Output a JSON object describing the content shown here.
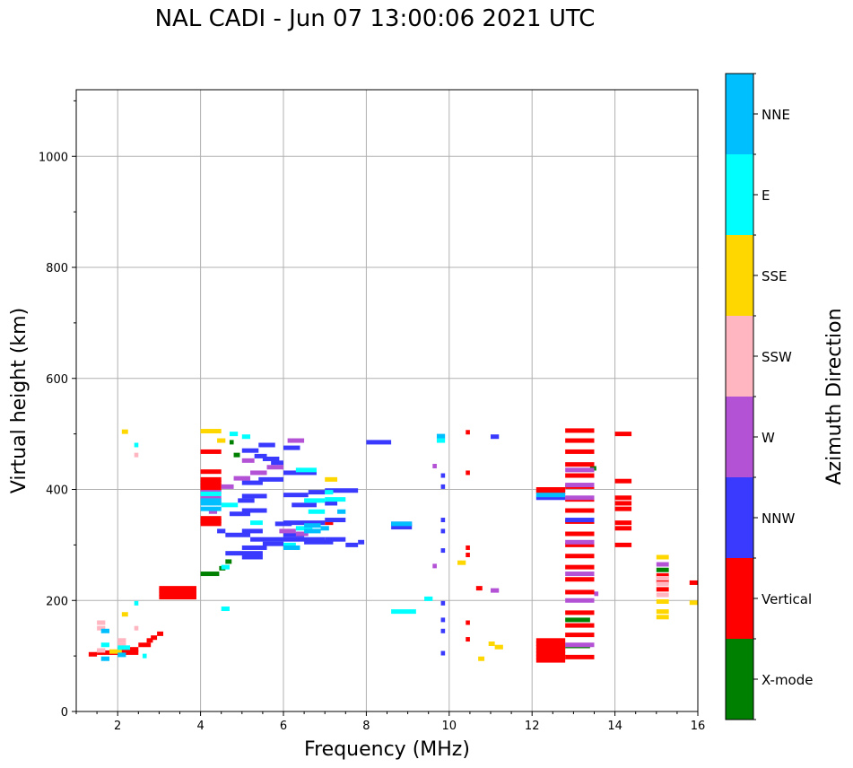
{
  "chart_data": {
    "type": "scatter",
    "title": "NAL CADI - Jun 07 13:00:06 2021 UTC",
    "xlabel": "Frequency (MHz)",
    "ylabel": "Virtual height (km)",
    "xlim": [
      1,
      16
    ],
    "ylim": [
      0,
      1120
    ],
    "xticks": [
      2,
      4,
      6,
      8,
      10,
      12,
      14,
      16
    ],
    "yticks": [
      0,
      200,
      400,
      600,
      800,
      1000
    ],
    "grid": true,
    "colorbar": {
      "label": "Azimuth Direction",
      "categories": [
        {
          "name": "X-mode",
          "color": "#008000"
        },
        {
          "name": "Vertical",
          "color": "#ff0000"
        },
        {
          "name": "NNW",
          "color": "#3a3aff"
        },
        {
          "name": "W",
          "color": "#b452d6"
        },
        {
          "name": "SSW",
          "color": "#ffb6c1"
        },
        {
          "name": "SSE",
          "color": "#ffd700"
        },
        {
          "name": "E",
          "color": "#00ffff"
        },
        {
          "name": "NNE",
          "color": "#00bfff"
        }
      ]
    },
    "series": [
      {
        "name": "X-mode",
        "segments": [
          [
            4.0,
            4.45,
            248
          ],
          [
            4.45,
            4.6,
            258
          ],
          [
            4.6,
            4.75,
            270
          ],
          [
            12.8,
            13.4,
            118
          ],
          [
            12.8,
            13.4,
            165
          ],
          [
            13.4,
            13.55,
            438
          ],
          [
            4.7,
            4.8,
            485
          ],
          [
            4.8,
            4.95,
            462
          ],
          [
            15.0,
            15.3,
            255
          ]
        ]
      },
      {
        "name": "Vertical",
        "segments": [
          [
            1.3,
            1.5,
            103
          ],
          [
            1.5,
            2.5,
            106
          ],
          [
            2.0,
            2.5,
            112
          ],
          [
            2.5,
            2.8,
            120
          ],
          [
            2.7,
            2.85,
            128
          ],
          [
            2.8,
            2.95,
            133
          ],
          [
            2.95,
            3.1,
            140
          ],
          [
            3.0,
            3.9,
            206
          ],
          [
            3.0,
            3.9,
            212
          ],
          [
            3.0,
            3.9,
            218
          ],
          [
            3.0,
            3.9,
            222
          ],
          [
            4.0,
            4.5,
            338
          ],
          [
            4.0,
            4.5,
            343
          ],
          [
            4.0,
            4.5,
            348
          ],
          [
            4.0,
            4.5,
            402
          ],
          [
            4.0,
            4.5,
            407
          ],
          [
            4.0,
            4.5,
            412
          ],
          [
            4.0,
            4.5,
            418
          ],
          [
            4.0,
            4.5,
            432
          ],
          [
            4.0,
            4.5,
            468
          ],
          [
            7.0,
            7.2,
            340
          ],
          [
            10.4,
            10.5,
            130
          ],
          [
            10.4,
            10.5,
            160
          ],
          [
            10.4,
            10.5,
            282
          ],
          [
            10.4,
            10.5,
            295
          ],
          [
            10.4,
            10.5,
            430
          ],
          [
            10.4,
            10.5,
            503
          ],
          [
            10.65,
            10.8,
            222
          ],
          [
            12.1,
            12.8,
            92
          ],
          [
            12.1,
            12.8,
            98
          ],
          [
            12.1,
            12.8,
            104
          ],
          [
            12.1,
            12.8,
            110
          ],
          [
            12.1,
            12.8,
            116
          ],
          [
            12.1,
            12.8,
            122
          ],
          [
            12.1,
            12.8,
            128
          ],
          [
            12.1,
            12.8,
            395
          ],
          [
            12.1,
            12.8,
            400
          ],
          [
            12.8,
            13.5,
            98
          ],
          [
            12.8,
            13.5,
            138
          ],
          [
            12.8,
            13.5,
            155
          ],
          [
            12.8,
            13.5,
            178
          ],
          [
            12.8,
            13.5,
            215
          ],
          [
            12.8,
            13.5,
            238
          ],
          [
            12.8,
            13.5,
            260
          ],
          [
            12.8,
            13.5,
            280
          ],
          [
            12.8,
            13.5,
            300
          ],
          [
            12.8,
            13.5,
            320
          ],
          [
            12.8,
            13.5,
            342
          ],
          [
            12.8,
            13.5,
            362
          ],
          [
            12.8,
            13.5,
            382
          ],
          [
            12.8,
            13.5,
            405
          ],
          [
            12.8,
            13.5,
            425
          ],
          [
            12.8,
            13.5,
            445
          ],
          [
            12.8,
            13.5,
            468
          ],
          [
            12.8,
            13.5,
            488
          ],
          [
            12.8,
            13.5,
            506
          ],
          [
            14.0,
            14.4,
            300
          ],
          [
            14.0,
            14.4,
            330
          ],
          [
            14.0,
            14.4,
            340
          ],
          [
            14.0,
            14.4,
            365
          ],
          [
            14.0,
            14.4,
            375
          ],
          [
            14.0,
            14.4,
            385
          ],
          [
            14.0,
            14.4,
            415
          ],
          [
            14.0,
            14.4,
            500
          ],
          [
            15.0,
            15.3,
            220
          ],
          [
            15.0,
            15.3,
            235
          ],
          [
            15.0,
            15.3,
            245
          ],
          [
            15.8,
            16.0,
            232
          ]
        ]
      },
      {
        "name": "NNW",
        "segments": [
          [
            4.6,
            5.5,
            285
          ],
          [
            5.0,
            5.5,
            278
          ],
          [
            5.0,
            5.6,
            295
          ],
          [
            5.5,
            6.0,
            302
          ],
          [
            5.2,
            6.0,
            310
          ],
          [
            6.0,
            7.0,
            310
          ],
          [
            6.5,
            7.2,
            305
          ],
          [
            7.0,
            7.5,
            310
          ],
          [
            7.5,
            7.8,
            300
          ],
          [
            7.8,
            7.95,
            305
          ],
          [
            4.6,
            5.2,
            318
          ],
          [
            5.0,
            5.5,
            325
          ],
          [
            6.0,
            6.5,
            318
          ],
          [
            5.8,
            6.2,
            338
          ],
          [
            6.0,
            7.0,
            340
          ],
          [
            7.0,
            7.5,
            345
          ],
          [
            4.7,
            5.2,
            356
          ],
          [
            5.0,
            5.6,
            362
          ],
          [
            6.2,
            6.8,
            372
          ],
          [
            7.0,
            7.3,
            375
          ],
          [
            4.9,
            5.3,
            380
          ],
          [
            5.0,
            5.6,
            388
          ],
          [
            6.0,
            6.6,
            390
          ],
          [
            6.6,
            7.0,
            395
          ],
          [
            7.0,
            7.8,
            398
          ],
          [
            5.0,
            5.5,
            412
          ],
          [
            5.4,
            6.0,
            418
          ],
          [
            6.0,
            6.8,
            430
          ],
          [
            5.3,
            5.6,
            460
          ],
          [
            5.5,
            5.9,
            455
          ],
          [
            5.7,
            6.0,
            448
          ],
          [
            5.0,
            5.4,
            470
          ],
          [
            5.4,
            5.8,
            480
          ],
          [
            6.0,
            6.4,
            475
          ],
          [
            8.0,
            8.6,
            485
          ],
          [
            8.6,
            9.1,
            338
          ],
          [
            8.6,
            9.1,
            332
          ],
          [
            9.8,
            9.9,
            105
          ],
          [
            9.8,
            9.9,
            145
          ],
          [
            9.8,
            9.9,
            165
          ],
          [
            9.8,
            9.9,
            195
          ],
          [
            9.8,
            9.9,
            290
          ],
          [
            9.8,
            9.9,
            325
          ],
          [
            9.8,
            9.9,
            345
          ],
          [
            9.8,
            9.9,
            405
          ],
          [
            9.8,
            9.9,
            425
          ],
          [
            11.0,
            11.2,
            495
          ],
          [
            12.1,
            12.8,
            385
          ],
          [
            12.8,
            13.5,
            345
          ],
          [
            4.4,
            4.6,
            325
          ]
        ]
      },
      {
        "name": "W",
        "segments": [
          [
            4.0,
            4.5,
            385
          ],
          [
            4.0,
            4.5,
            395
          ],
          [
            4.5,
            4.8,
            405
          ],
          [
            4.8,
            5.2,
            420
          ],
          [
            5.2,
            5.6,
            430
          ],
          [
            5.6,
            6.0,
            440
          ],
          [
            6.1,
            6.5,
            488
          ],
          [
            5.0,
            5.3,
            452
          ],
          [
            5.9,
            6.3,
            325
          ],
          [
            6.3,
            6.6,
            320
          ],
          [
            9.6,
            9.7,
            262
          ],
          [
            9.6,
            9.7,
            442
          ],
          [
            11.0,
            11.2,
            218
          ],
          [
            12.8,
            13.5,
            120
          ],
          [
            12.8,
            13.5,
            200
          ],
          [
            12.8,
            13.5,
            248
          ],
          [
            12.8,
            13.5,
            305
          ],
          [
            12.8,
            13.5,
            385
          ],
          [
            12.8,
            13.5,
            408
          ],
          [
            12.8,
            13.5,
            435
          ],
          [
            13.5,
            13.6,
            212
          ],
          [
            15.0,
            15.3,
            265
          ],
          [
            4.2,
            4.4,
            360
          ]
        ]
      },
      {
        "name": "SSW",
        "segments": [
          [
            1.5,
            1.7,
            110
          ],
          [
            1.5,
            1.7,
            150
          ],
          [
            1.5,
            1.7,
            160
          ],
          [
            2.0,
            2.2,
            120
          ],
          [
            2.0,
            2.2,
            128
          ],
          [
            2.4,
            2.5,
            150
          ],
          [
            2.4,
            2.5,
            462
          ],
          [
            15.0,
            15.3,
            230
          ],
          [
            15.0,
            15.3,
            240
          ],
          [
            15.0,
            15.3,
            210
          ]
        ]
      },
      {
        "name": "SSE",
        "segments": [
          [
            2.1,
            2.25,
            504
          ],
          [
            2.1,
            2.25,
            175
          ],
          [
            1.8,
            2.1,
            108
          ],
          [
            7.0,
            7.3,
            418
          ],
          [
            10.2,
            10.4,
            268
          ],
          [
            10.7,
            10.85,
            95
          ],
          [
            10.95,
            11.1,
            122
          ],
          [
            11.1,
            11.3,
            116
          ],
          [
            15.0,
            15.3,
            170
          ],
          [
            15.0,
            15.3,
            180
          ],
          [
            15.0,
            15.3,
            198
          ],
          [
            15.0,
            15.3,
            278
          ],
          [
            15.8,
            16.0,
            196
          ],
          [
            4.0,
            4.5,
            505
          ],
          [
            4.4,
            4.6,
            488
          ]
        ]
      },
      {
        "name": "E",
        "segments": [
          [
            1.6,
            1.8,
            120
          ],
          [
            2.0,
            2.3,
            115
          ],
          [
            2.4,
            2.5,
            195
          ],
          [
            2.4,
            2.5,
            480
          ],
          [
            2.6,
            2.7,
            100
          ],
          [
            4.5,
            4.7,
            185
          ],
          [
            4.5,
            4.7,
            260
          ],
          [
            4.0,
            4.5,
            392
          ],
          [
            4.5,
            4.9,
            372
          ],
          [
            5.2,
            5.5,
            340
          ],
          [
            6.0,
            6.3,
            300
          ],
          [
            6.3,
            6.7,
            330
          ],
          [
            6.6,
            7.0,
            360
          ],
          [
            6.5,
            7.0,
            380
          ],
          [
            6.3,
            6.8,
            435
          ],
          [
            7.0,
            7.2,
            395
          ],
          [
            7.0,
            7.5,
            382
          ],
          [
            5.0,
            5.2,
            495
          ],
          [
            4.7,
            4.9,
            500
          ],
          [
            8.6,
            9.2,
            180
          ],
          [
            9.4,
            9.6,
            203
          ],
          [
            9.7,
            9.9,
            488
          ]
        ]
      },
      {
        "name": "NNE",
        "segments": [
          [
            1.6,
            1.8,
            95
          ],
          [
            1.6,
            1.8,
            145
          ],
          [
            2.0,
            2.2,
            102
          ],
          [
            4.0,
            4.5,
            365
          ],
          [
            4.0,
            4.5,
            375
          ],
          [
            4.0,
            4.5,
            380
          ],
          [
            6.5,
            6.9,
            335
          ],
          [
            6.5,
            6.9,
            325
          ],
          [
            6.9,
            7.1,
            330
          ],
          [
            7.3,
            7.5,
            360
          ],
          [
            6.0,
            6.4,
            295
          ],
          [
            9.7,
            9.9,
            496
          ],
          [
            8.6,
            9.1,
            338
          ],
          [
            12.1,
            12.8,
            390
          ]
        ]
      }
    ]
  }
}
